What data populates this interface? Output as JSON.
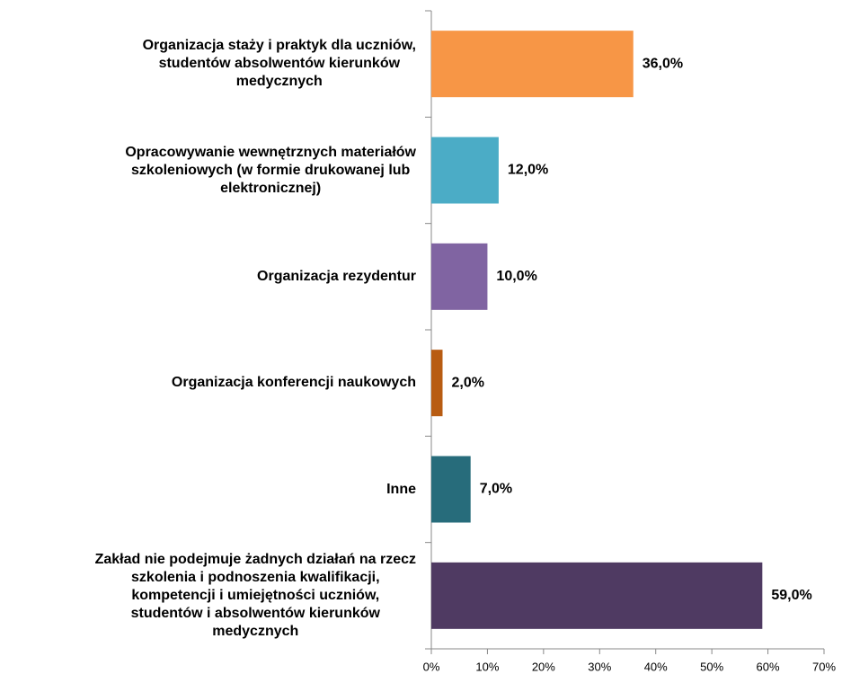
{
  "chart_data": {
    "type": "barh",
    "categories": [
      "Organizacja staży i praktyk dla uczniów,\nstudentów absolwentów kierunków\nmedycznych",
      "Opracowywanie wewnętrznych materiałów\nszkoleniowych (w formie drukowanej lub\nelektronicznej)",
      "Organizacja rezydentur",
      "Organizacja konferencji naukowych",
      "Inne",
      "Zakład nie podejmuje żadnych działań na rzecz\nszkolenia i podnoszenia kwalifikacji,\nkompetencji i umiejętności uczniów,\nstudentów i absolwentów kierunków\nmedycznych"
    ],
    "values": [
      36,
      12,
      10,
      2,
      7,
      59
    ],
    "value_labels": [
      "36,0%",
      "12,0%",
      "10,0%",
      "2,0%",
      "7,0%",
      "59,0%"
    ],
    "colors": [
      "#f79646",
      "#4bacc6",
      "#8064a2",
      "#b85c12",
      "#276c7b",
      "#4f3a62"
    ],
    "xlim": [
      0,
      70
    ],
    "xticks": [
      {
        "value": 0,
        "label": "0%"
      },
      {
        "value": 10,
        "label": "10%"
      },
      {
        "value": 20,
        "label": "20%"
      },
      {
        "value": 30,
        "label": "30%"
      },
      {
        "value": 40,
        "label": "40%"
      },
      {
        "value": 50,
        "label": "50%"
      },
      {
        "value": 60,
        "label": "60%"
      },
      {
        "value": 70,
        "label": "70%"
      }
    ],
    "grid": false
  }
}
